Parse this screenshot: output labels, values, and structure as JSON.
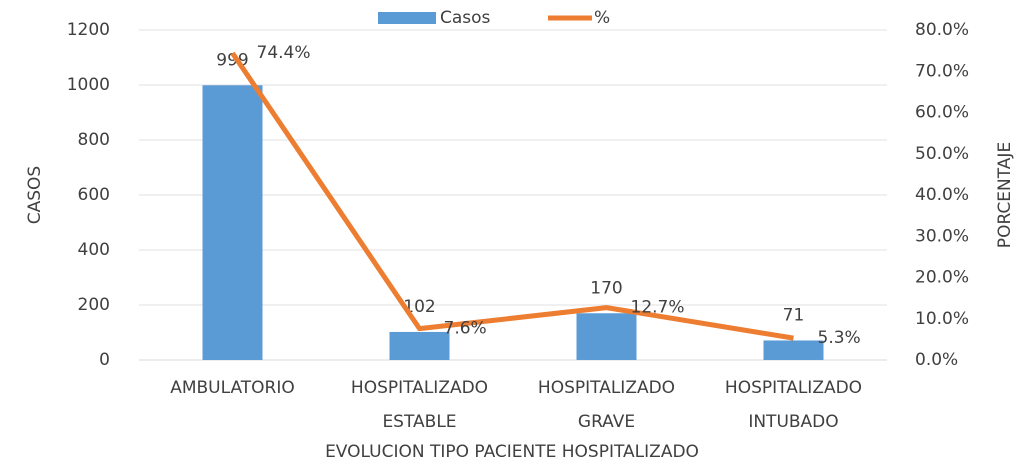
{
  "chart_data": {
    "type": "bar_line",
    "categories": [
      [
        "AMBULATORIO"
      ],
      [
        "HOSPITALIZADO",
        "ESTABLE"
      ],
      [
        "HOSPITALIZADO",
        "GRAVE"
      ],
      [
        "HOSPITALIZADO",
        "INTUBADO"
      ]
    ],
    "series": [
      {
        "name": "Casos",
        "type": "bar",
        "color": "#5b9bd5",
        "values": [
          999,
          102,
          170,
          71
        ]
      },
      {
        "name": "%",
        "type": "line",
        "axis": "y2",
        "color": "#ed7d31",
        "values": [
          74.4,
          7.6,
          12.7,
          5.3
        ],
        "value_labels": [
          "74.4%",
          "7.6%",
          "12.7%",
          "5.3%"
        ]
      }
    ],
    "ylim": [
      0,
      1200
    ],
    "yticks": [
      0,
      200,
      400,
      600,
      800,
      1000,
      1200
    ],
    "y2lim": [
      0,
      80
    ],
    "y2ticks": [
      {
        "value": 0,
        "label": "0.0%"
      },
      {
        "value": 10,
        "label": "10.0%"
      },
      {
        "value": 20,
        "label": "20.0%"
      },
      {
        "value": 30,
        "label": "30.0%"
      },
      {
        "value": 40,
        "label": "40.0%"
      },
      {
        "value": 50,
        "label": "50.0%"
      },
      {
        "value": 60,
        "label": "60.0%"
      },
      {
        "value": 70,
        "label": "70.0%"
      },
      {
        "value": 80,
        "label": "80.0%"
      }
    ],
    "ylabel": "CASOS",
    "y2label": "PORCENTAJE",
    "xlabel": "EVOLUCION TIPO PACIENTE HOSPITALIZADO",
    "grid": true,
    "legend": "top"
  }
}
